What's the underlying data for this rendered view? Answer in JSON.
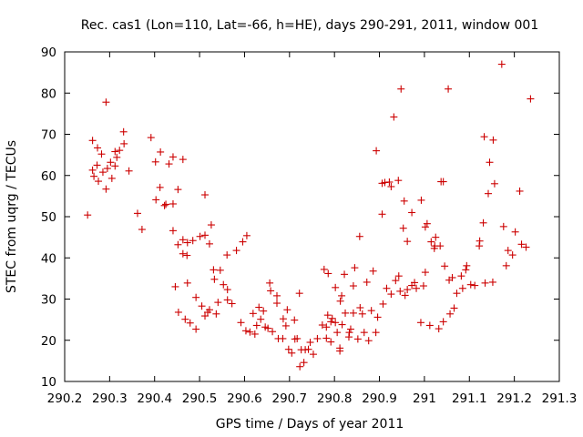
{
  "chart_data": {
    "type": "scatter",
    "title": "Rec. cas1 (Lon=110, Lat=-66, h=HE), days 290-291, 2011, window 001",
    "xlabel": "GPS time / Days of year 2011",
    "ylabel": "STEC from uqrg / TECUs",
    "xlim": [
      290.2,
      291.3
    ],
    "ylim": [
      10,
      90
    ],
    "xticks": [
      290.2,
      290.3,
      290.4,
      290.5,
      290.6,
      290.7,
      290.8,
      290.9,
      291.0,
      291.1,
      291.2,
      291.3
    ],
    "xtick_labels": [
      "290.2",
      "290.3",
      "290.4",
      "290.5",
      "290.6",
      "290.7",
      "290.8",
      "290.9",
      "291",
      "291.1",
      "291.2",
      "291.3"
    ],
    "yticks": [
      10,
      20,
      30,
      40,
      50,
      60,
      70,
      80,
      90
    ],
    "ytick_labels": [
      "10",
      "20",
      "30",
      "40",
      "50",
      "60",
      "70",
      "80",
      "90"
    ],
    "grid": false,
    "marker": "plus",
    "color": "#cc0000",
    "series": [
      {
        "points": [
          [
            290.251,
            50.4
          ],
          [
            290.262,
            68.5
          ],
          [
            290.262,
            61.3
          ],
          [
            290.265,
            59.8
          ],
          [
            290.272,
            62.5
          ],
          [
            290.273,
            66.7
          ],
          [
            290.275,
            58.6
          ],
          [
            290.282,
            65.2
          ],
          [
            290.285,
            60.8
          ],
          [
            290.292,
            77.8
          ],
          [
            290.292,
            56.7
          ],
          [
            290.295,
            61.7
          ],
          [
            290.302,
            63.2
          ],
          [
            290.305,
            59.3
          ],
          [
            290.312,
            65.8
          ],
          [
            290.312,
            62.3
          ],
          [
            290.316,
            64.4
          ],
          [
            290.322,
            66.1
          ],
          [
            290.331,
            70.6
          ],
          [
            290.332,
            67.7
          ],
          [
            290.343,
            61.1
          ],
          [
            290.362,
            50.8
          ],
          [
            290.372,
            46.9
          ],
          [
            290.392,
            69.2
          ],
          [
            290.402,
            63.3
          ],
          [
            290.403,
            54.1
          ],
          [
            290.412,
            57.1
          ],
          [
            290.413,
            65.7
          ],
          [
            290.422,
            52.7
          ],
          [
            290.425,
            53.0
          ],
          [
            290.432,
            62.8
          ],
          [
            290.441,
            53.1
          ],
          [
            290.441,
            46.6
          ],
          [
            290.441,
            64.5
          ],
          [
            290.446,
            33.0
          ],
          [
            290.452,
            56.6
          ],
          [
            290.452,
            43.2
          ],
          [
            290.453,
            26.8
          ],
          [
            290.463,
            44.4
          ],
          [
            290.463,
            41.0
          ],
          [
            290.463,
            63.9
          ],
          [
            290.468,
            25.1
          ],
          [
            290.472,
            40.6
          ],
          [
            290.473,
            33.9
          ],
          [
            290.473,
            43.7
          ],
          [
            290.479,
            24.2
          ],
          [
            290.485,
            44.2
          ],
          [
            290.492,
            22.7
          ],
          [
            290.492,
            30.4
          ],
          [
            290.501,
            45.2
          ],
          [
            290.505,
            28.3
          ],
          [
            290.512,
            45.5
          ],
          [
            290.512,
            55.3
          ],
          [
            290.512,
            25.9
          ],
          [
            290.518,
            26.8
          ],
          [
            290.522,
            27.4
          ],
          [
            290.522,
            43.4
          ],
          [
            290.526,
            48.0
          ],
          [
            290.531,
            37.1
          ],
          [
            290.533,
            34.8
          ],
          [
            290.537,
            26.4
          ],
          [
            290.541,
            29.2
          ],
          [
            290.546,
            37.0
          ],
          [
            290.553,
            33.5
          ],
          [
            290.561,
            40.7
          ],
          [
            290.562,
            29.8
          ],
          [
            290.562,
            32.3
          ],
          [
            290.572,
            28.9
          ],
          [
            290.582,
            41.8
          ],
          [
            290.592,
            24.3
          ],
          [
            290.596,
            43.9
          ],
          [
            290.603,
            22.3
          ],
          [
            290.605,
            45.4
          ],
          [
            290.612,
            22.0
          ],
          [
            290.619,
            26.5
          ],
          [
            290.623,
            21.5
          ],
          [
            290.627,
            23.6
          ],
          [
            290.632,
            28.0
          ],
          [
            290.636,
            25.1
          ],
          [
            290.642,
            27.1
          ],
          [
            290.646,
            23.2
          ],
          [
            290.652,
            22.9
          ],
          [
            290.656,
            33.9
          ],
          [
            290.658,
            32.0
          ],
          [
            290.662,
            22.1
          ],
          [
            290.672,
            30.8
          ],
          [
            290.672,
            29.0
          ],
          [
            290.675,
            20.4
          ],
          [
            290.685,
            20.4
          ],
          [
            290.686,
            25.2
          ],
          [
            290.692,
            23.5
          ],
          [
            290.695,
            27.4
          ],
          [
            290.698,
            17.8
          ],
          [
            290.705,
            16.9
          ],
          [
            290.711,
            24.9
          ],
          [
            290.712,
            20.3
          ],
          [
            290.717,
            20.4
          ],
          [
            290.722,
            31.4
          ],
          [
            290.723,
            13.6
          ],
          [
            290.726,
            17.7
          ],
          [
            290.732,
            14.6
          ],
          [
            290.735,
            17.7
          ],
          [
            290.742,
            17.8
          ],
          [
            290.746,
            19.5
          ],
          [
            290.753,
            16.6
          ],
          [
            290.762,
            20.4
          ],
          [
            290.773,
            23.7
          ],
          [
            290.777,
            37.2
          ],
          [
            290.782,
            23.2
          ],
          [
            290.782,
            20.5
          ],
          [
            290.785,
            26.1
          ],
          [
            290.786,
            36.2
          ],
          [
            290.792,
            19.6
          ],
          [
            290.792,
            24.5
          ],
          [
            290.795,
            25.3
          ],
          [
            290.802,
            32.8
          ],
          [
            290.802,
            24.3
          ],
          [
            290.806,
            21.9
          ],
          [
            290.812,
            17.4
          ],
          [
            290.812,
            18.1
          ],
          [
            290.813,
            29.5
          ],
          [
            290.816,
            30.8
          ],
          [
            290.817,
            23.8
          ],
          [
            290.822,
            36.0
          ],
          [
            290.824,
            26.6
          ],
          [
            290.832,
            20.8
          ],
          [
            290.833,
            21.9
          ],
          [
            290.836,
            22.7
          ],
          [
            290.842,
            33.2
          ],
          [
            290.842,
            26.6
          ],
          [
            290.845,
            37.6
          ],
          [
            290.852,
            20.3
          ],
          [
            290.856,
            45.2
          ],
          [
            290.857,
            27.9
          ],
          [
            290.862,
            26.4
          ],
          [
            290.866,
            21.9
          ],
          [
            290.872,
            34.1
          ],
          [
            290.876,
            19.9
          ],
          [
            290.882,
            27.2
          ],
          [
            290.886,
            36.8
          ],
          [
            290.892,
            21.9
          ],
          [
            290.893,
            66.0
          ],
          [
            290.896,
            25.6
          ],
          [
            290.906,
            50.6
          ],
          [
            290.906,
            58.1
          ],
          [
            290.908,
            28.8
          ],
          [
            290.912,
            58.3
          ],
          [
            290.916,
            32.6
          ],
          [
            290.922,
            58.4
          ],
          [
            290.926,
            31.2
          ],
          [
            290.926,
            57.3
          ],
          [
            290.932,
            74.2
          ],
          [
            290.936,
            34.5
          ],
          [
            290.942,
            58.8
          ],
          [
            290.943,
            35.6
          ],
          [
            290.946,
            31.9
          ],
          [
            290.948,
            81.0
          ],
          [
            290.953,
            47.2
          ],
          [
            290.955,
            53.8
          ],
          [
            290.957,
            30.9
          ],
          [
            290.962,
            44.0
          ],
          [
            290.962,
            32.3
          ],
          [
            290.972,
            33.3
          ],
          [
            290.972,
            51.0
          ],
          [
            290.978,
            34.0
          ],
          [
            290.982,
            32.6
          ],
          [
            290.992,
            24.3
          ],
          [
            290.993,
            54.0
          ],
          [
            290.998,
            33.2
          ],
          [
            291.002,
            36.5
          ],
          [
            291.002,
            47.5
          ],
          [
            291.006,
            48.3
          ],
          [
            291.012,
            23.6
          ],
          [
            291.015,
            43.9
          ],
          [
            291.022,
            42.3
          ],
          [
            291.023,
            42.9
          ],
          [
            291.025,
            45.0
          ],
          [
            291.032,
            22.8
          ],
          [
            291.035,
            42.9
          ],
          [
            291.037,
            58.5
          ],
          [
            291.042,
            24.5
          ],
          [
            291.042,
            58.5
          ],
          [
            291.045,
            38.0
          ],
          [
            291.053,
            81.0
          ],
          [
            291.055,
            34.6
          ],
          [
            291.057,
            26.4
          ],
          [
            291.062,
            35.2
          ],
          [
            291.066,
            27.8
          ],
          [
            291.072,
            31.4
          ],
          [
            291.082,
            35.6
          ],
          [
            291.085,
            32.6
          ],
          [
            291.092,
            37.1
          ],
          [
            291.094,
            38.1
          ],
          [
            291.103,
            33.5
          ],
          [
            291.112,
            33.3
          ],
          [
            291.122,
            42.9
          ],
          [
            291.123,
            44.1
          ],
          [
            291.131,
            48.5
          ],
          [
            291.133,
            69.4
          ],
          [
            291.135,
            33.9
          ],
          [
            291.142,
            55.6
          ],
          [
            291.145,
            63.2
          ],
          [
            291.152,
            34.1
          ],
          [
            291.153,
            68.6
          ],
          [
            291.156,
            58.0
          ],
          [
            291.172,
            87.0
          ],
          [
            291.176,
            47.6
          ],
          [
            291.182,
            38.1
          ],
          [
            291.186,
            41.8
          ],
          [
            291.196,
            40.7
          ],
          [
            291.202,
            46.3
          ],
          [
            291.212,
            56.2
          ],
          [
            291.216,
            43.3
          ],
          [
            291.226,
            42.6
          ],
          [
            291.236,
            78.6
          ]
        ]
      }
    ]
  }
}
